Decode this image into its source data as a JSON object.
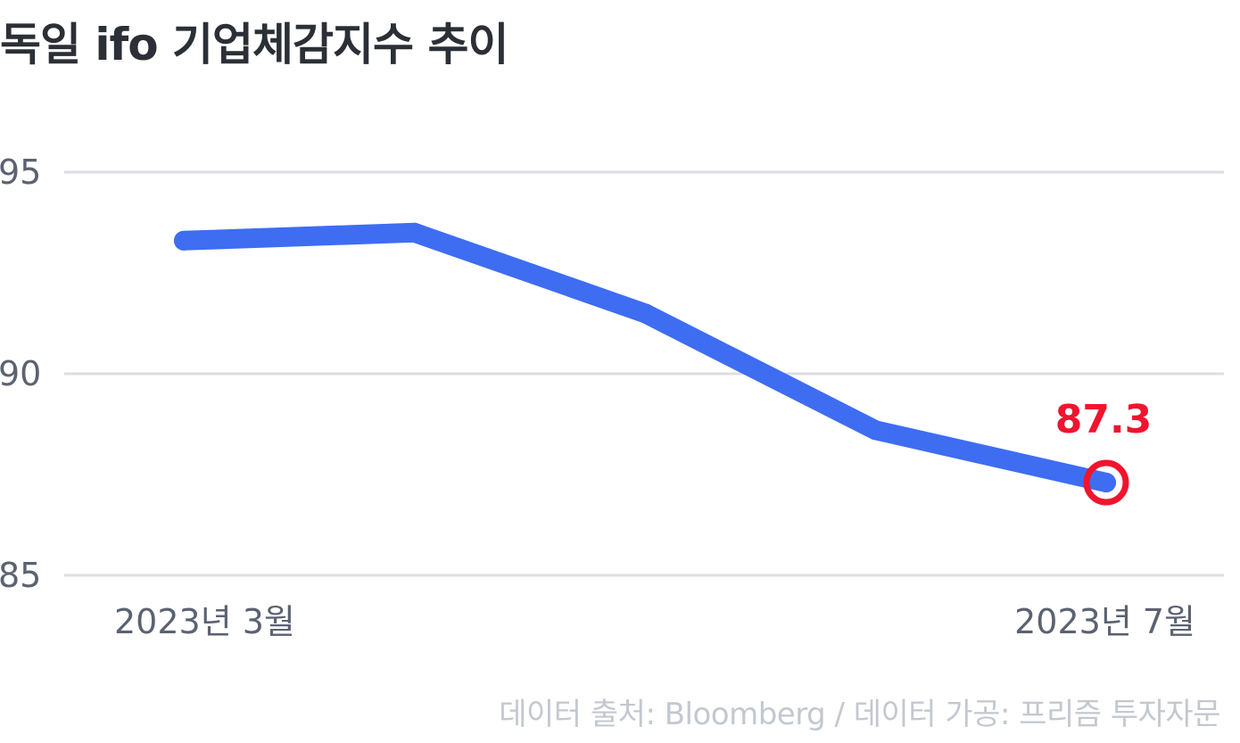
{
  "chart_data": {
    "type": "line",
    "title": "독일 ifo 기업체감지수 추이",
    "x": [
      "2023-03",
      "2023-04",
      "2023-05",
      "2023-06",
      "2023-07"
    ],
    "x_tick_labels": [
      {
        "label": "2023년 3월",
        "index": 0
      },
      {
        "label": "2023년 7월",
        "index": 4
      }
    ],
    "series": [
      {
        "values": [
          93.3,
          93.5,
          91.5,
          88.6,
          87.3
        ]
      }
    ],
    "yticks": [
      95,
      90,
      85
    ],
    "ylim": [
      85,
      95
    ],
    "grid": true,
    "annotation": {
      "index": 4,
      "label": "87.3"
    },
    "colors": {
      "line": "#3e6df2",
      "highlight": "#f0142e",
      "grid": "#dcdee2",
      "tick_text": "#5b6270"
    },
    "source": "데이터 출처: Bloomberg / 데이터 가공: 프리즘 투자자문"
  }
}
